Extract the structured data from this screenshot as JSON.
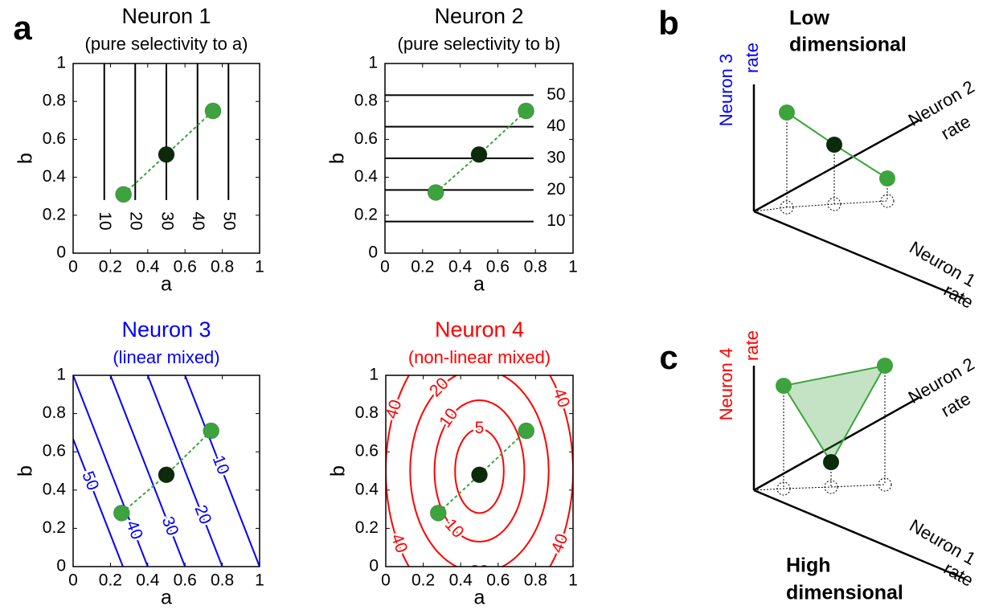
{
  "panel_labels": [
    "a",
    "b",
    "c"
  ],
  "chart_data": [
    {
      "type": "contour",
      "title": "Neuron 1",
      "subtitle": "(pure selectivity to a)",
      "title_color": "#000000",
      "xlabel": "a",
      "ylabel": "b",
      "xlim": [
        0,
        1
      ],
      "ylim": [
        0,
        1
      ],
      "xticks": [
        0,
        0.2,
        0.4,
        0.6,
        0.8,
        1
      ],
      "yticks": [
        0,
        0.2,
        0.4,
        0.6,
        0.8,
        1
      ],
      "contour_color": "#000000",
      "contours": [
        {
          "level": 10,
          "x": [
            0.167,
            0.167
          ],
          "y": [
            1,
            0.28
          ]
        },
        {
          "level": 20,
          "x": [
            0.333,
            0.333
          ],
          "y": [
            1,
            0.28
          ]
        },
        {
          "level": 30,
          "x": [
            0.5,
            0.5
          ],
          "y": [
            1,
            0.28
          ]
        },
        {
          "level": 40,
          "x": [
            0.667,
            0.667
          ],
          "y": [
            1,
            0.28
          ]
        },
        {
          "level": 50,
          "x": [
            0.833,
            0.833
          ],
          "y": [
            1,
            0.28
          ]
        }
      ],
      "points": {
        "x": [
          0.27,
          0.5,
          0.75
        ],
        "y": [
          0.31,
          0.52,
          0.75
        ],
        "colors": [
          "#3da33d",
          "#0b2b0b",
          "#3da33d"
        ]
      }
    },
    {
      "type": "contour",
      "title": "Neuron 2",
      "subtitle": "(pure selectivity to b)",
      "title_color": "#000000",
      "xlabel": "a",
      "ylabel": "b",
      "xlim": [
        0,
        1
      ],
      "ylim": [
        0,
        1
      ],
      "xticks": [
        0,
        0.2,
        0.4,
        0.6,
        0.8,
        1
      ],
      "yticks": [
        0,
        0.2,
        0.4,
        0.6,
        0.8,
        1
      ],
      "contour_color": "#000000",
      "contours": [
        {
          "level": 10,
          "x": [
            0,
            0.79
          ],
          "y": [
            0.167,
            0.167
          ]
        },
        {
          "level": 20,
          "x": [
            0,
            0.79
          ],
          "y": [
            0.333,
            0.333
          ]
        },
        {
          "level": 30,
          "x": [
            0,
            0.79
          ],
          "y": [
            0.5,
            0.5
          ]
        },
        {
          "level": 40,
          "x": [
            0,
            0.79
          ],
          "y": [
            0.667,
            0.667
          ]
        },
        {
          "level": 50,
          "x": [
            0,
            0.79
          ],
          "y": [
            0.833,
            0.833
          ]
        }
      ],
      "points": {
        "x": [
          0.27,
          0.5,
          0.75
        ],
        "y": [
          0.32,
          0.52,
          0.75
        ],
        "colors": [
          "#3da33d",
          "#0b2b0b",
          "#3da33d"
        ]
      }
    },
    {
      "type": "contour",
      "title": "Neuron 3",
      "subtitle": "(linear mixed)",
      "title_color": "#0000ff",
      "xlabel": "a",
      "ylabel": "b",
      "xlim": [
        0,
        1
      ],
      "ylim": [
        0,
        1
      ],
      "xticks": [
        0,
        0.2,
        0.4,
        0.6,
        0.8,
        1
      ],
      "yticks": [
        0,
        0.2,
        0.4,
        0.6,
        0.8,
        1
      ],
      "contour_color": "#0000ff",
      "contours": [
        {
          "level": 50,
          "x": [
            0,
            0.267
          ],
          "y": [
            0.667,
            0
          ]
        },
        {
          "level": 40,
          "x": [
            0,
            0.4
          ],
          "y": [
            1,
            0
          ]
        },
        {
          "level": 30,
          "x": [
            0.2,
            0.6
          ],
          "y": [
            1,
            0
          ]
        },
        {
          "level": 20,
          "x": [
            0.4,
            0.8
          ],
          "y": [
            1,
            0
          ]
        },
        {
          "level": 10,
          "x": [
            0.6,
            1
          ],
          "y": [
            1,
            0
          ]
        }
      ],
      "points": {
        "x": [
          0.26,
          0.5,
          0.74
        ],
        "y": [
          0.28,
          0.48,
          0.71
        ],
        "colors": [
          "#3da33d",
          "#0b2b0b",
          "#3da33d"
        ]
      }
    },
    {
      "type": "contour",
      "title": "Neuron 4",
      "subtitle": "(non-linear mixed)",
      "title_color": "#ff0000",
      "xlabel": "a",
      "ylabel": "b",
      "xlim": [
        0,
        1
      ],
      "ylim": [
        0,
        1
      ],
      "xticks": [
        0,
        0.2,
        0.4,
        0.6,
        0.8,
        1
      ],
      "yticks": [
        0,
        0.2,
        0.4,
        0.6,
        0.8,
        1
      ],
      "contour_color": "#ff0000",
      "center": [
        0.5,
        0.5
      ],
      "contours": [
        {
          "level": 5,
          "rx": 0.13,
          "ry": 0.22
        },
        {
          "level": 10,
          "rx": 0.24,
          "ry": 0.37
        },
        {
          "level": 20,
          "rx": 0.37,
          "ry": 0.53
        },
        {
          "level": 40,
          "rx": 0.5,
          "ry": 0.76
        }
      ],
      "points": {
        "x": [
          0.28,
          0.5,
          0.75
        ],
        "y": [
          0.28,
          0.48,
          0.71
        ],
        "colors": [
          "#3da33d",
          "#0b2b0b",
          "#3da33d"
        ]
      }
    }
  ],
  "diagrams": [
    {
      "title_lines": [
        "Low",
        "dimensional"
      ],
      "axes": [
        {
          "name": "Neuron 1",
          "unit": "rate",
          "color": "#000000"
        },
        {
          "name": "Neuron 2",
          "unit": "rate",
          "color": "#000000"
        },
        {
          "name": "Neuron 3",
          "unit": "rate",
          "color": "#0000ff"
        }
      ]
    },
    {
      "title_lines": [
        "High",
        "dimensional"
      ],
      "axes": [
        {
          "name": "Neuron 1",
          "unit": "rate",
          "color": "#000000"
        },
        {
          "name": "Neuron 2",
          "unit": "rate",
          "color": "#000000"
        },
        {
          "name": "Neuron 4",
          "unit": "rate",
          "color": "#ff0000"
        }
      ]
    }
  ]
}
